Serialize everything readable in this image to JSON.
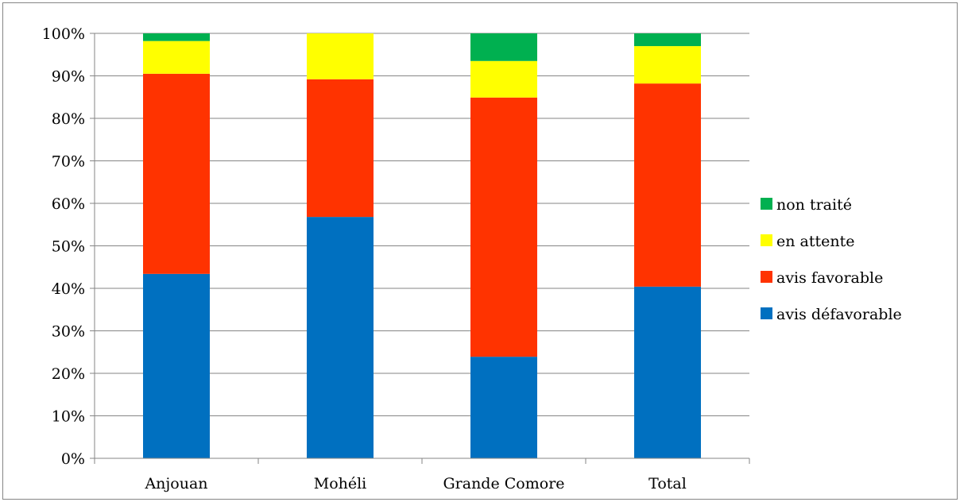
{
  "chart_data": {
    "type": "bar",
    "stacked": true,
    "percent_stacked": true,
    "categories": [
      "Anjouan",
      "Mohéli",
      "Grande Comore",
      "Total"
    ],
    "series": [
      {
        "name": "avis défavorable",
        "color": "#0070C0",
        "values": [
          43.4,
          56.8,
          23.9,
          40.4
        ]
      },
      {
        "name": "avis favorable",
        "color": "#FF3300",
        "values": [
          47.1,
          32.4,
          61.0,
          47.8
        ]
      },
      {
        "name": "en attente",
        "color": "#FFFF00",
        "values": [
          7.7,
          10.8,
          8.6,
          8.8
        ]
      },
      {
        "name": "non traité",
        "color": "#00B050",
        "values": [
          1.8,
          0.0,
          6.5,
          3.0
        ]
      }
    ],
    "ylim": [
      0,
      100
    ],
    "yticks": [
      "0%",
      "10%",
      "20%",
      "30%",
      "40%",
      "50%",
      "60%",
      "70%",
      "80%",
      "90%",
      "100%"
    ],
    "grid": true,
    "legend_position": "right",
    "title": "",
    "xlabel": "",
    "ylabel": ""
  }
}
